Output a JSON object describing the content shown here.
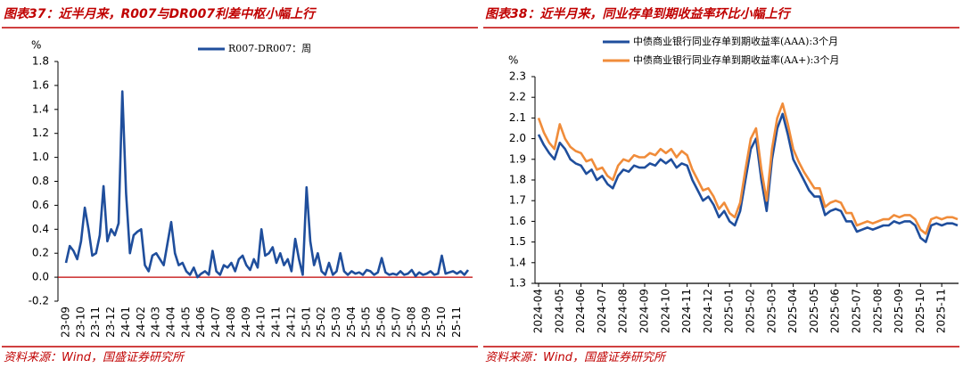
{
  "chart_data": [
    {
      "type": "line",
      "title": "图表37：近半月来，R007与DR007利差中枢小幅上行",
      "source": "资料来源：Wind，国盛证券研究所",
      "ylabel": "%",
      "categories": [
        "23-09",
        null,
        null,
        null,
        "23-10",
        null,
        null,
        null,
        "23-11",
        null,
        null,
        null,
        "23-12",
        null,
        null,
        null,
        "24-01",
        null,
        null,
        null,
        "24-02",
        null,
        null,
        null,
        "24-03",
        null,
        null,
        null,
        "24-04",
        null,
        null,
        null,
        "24-05",
        null,
        null,
        null,
        "24-06",
        null,
        null,
        null,
        "24-07",
        null,
        null,
        null,
        "24-08",
        null,
        null,
        null,
        "24-09",
        null,
        null,
        null,
        "24-10",
        null,
        null,
        null,
        "24-11",
        null,
        null,
        null,
        "24-12",
        null,
        null,
        null,
        "25-01",
        null,
        null,
        null,
        "25-02",
        null,
        null,
        null,
        "25-03",
        null,
        null,
        null,
        "25-04",
        null,
        null,
        null,
        "25-05",
        null,
        null,
        null,
        "25-06",
        null,
        null,
        null,
        "25-07",
        null,
        null,
        null,
        "25-08",
        null,
        null,
        null,
        "25-09",
        null,
        null,
        null,
        "25-10",
        null,
        null,
        null,
        "25-11",
        null,
        null,
        null
      ],
      "series": [
        {
          "name": "R007-DR007：周",
          "color": "#1f4e9c",
          "values": [
            0.12,
            0.26,
            0.22,
            0.15,
            0.3,
            0.58,
            0.4,
            0.18,
            0.2,
            0.35,
            0.76,
            0.3,
            0.4,
            0.35,
            0.45,
            1.55,
            0.7,
            0.2,
            0.35,
            0.38,
            0.4,
            0.1,
            0.05,
            0.18,
            0.2,
            0.15,
            0.1,
            0.28,
            0.46,
            0.2,
            0.1,
            0.12,
            0.05,
            0.02,
            0.08,
            0.0,
            0.03,
            0.05,
            0.02,
            0.22,
            0.05,
            0.02,
            0.1,
            0.08,
            0.12,
            0.05,
            0.15,
            0.18,
            0.1,
            0.06,
            0.15,
            0.08,
            0.4,
            0.18,
            0.2,
            0.25,
            0.12,
            0.2,
            0.1,
            0.15,
            0.05,
            0.32,
            0.15,
            0.02,
            0.75,
            0.3,
            0.1,
            0.2,
            0.05,
            0.02,
            0.12,
            0.02,
            0.05,
            0.2,
            0.05,
            0.02,
            0.05,
            0.03,
            0.04,
            0.02,
            0.06,
            0.05,
            0.02,
            0.04,
            0.16,
            0.04,
            0.02,
            0.03,
            0.02,
            0.05,
            0.02,
            0.03,
            0.06,
            0.01,
            0.04,
            0.02,
            0.03,
            0.05,
            0.02,
            0.03,
            0.18,
            0.03,
            0.04,
            0.05,
            0.03,
            0.05,
            0.02,
            0.06
          ]
        }
      ],
      "ylim": [
        -0.2,
        1.8
      ],
      "yticks": [
        -0.2,
        {
          "value": 0,
          "label": "0.0"
        },
        0.2,
        0.4,
        0.6,
        0.8,
        {
          "value": 1,
          "label": "1.0"
        },
        1.2,
        1.4,
        1.6,
        1.8
      ],
      "zero_line_color": "#c00000",
      "grid": false
    },
    {
      "type": "line",
      "title": "图表38：近半月来，同业存单到期收益率环比小幅上行",
      "source": "资料来源：Wind，国盛证券研究所",
      "ylabel": "%",
      "categories": [
        "2024-04",
        null,
        null,
        null,
        "2024-05",
        null,
        null,
        null,
        "2024-06",
        null,
        null,
        null,
        "2024-07",
        null,
        null,
        null,
        "2024-08",
        null,
        null,
        null,
        "2024-09",
        null,
        null,
        null,
        "2024-10",
        null,
        null,
        null,
        "2024-11",
        null,
        null,
        null,
        "2024-12",
        null,
        null,
        null,
        "2025-01",
        null,
        null,
        null,
        "2025-02",
        null,
        null,
        null,
        "2025-03",
        null,
        null,
        null,
        "2025-04",
        null,
        null,
        null,
        "2025-05",
        null,
        null,
        null,
        "2025-06",
        null,
        null,
        null,
        "2025-07",
        null,
        null,
        null,
        "2025-08",
        null,
        null,
        null,
        "2025-09",
        null,
        null,
        null,
        "2025-10",
        null,
        null,
        null,
        "2025-11",
        null,
        null,
        null
      ],
      "series": [
        {
          "name": "中债商业银行同业存单到期收益率(AAA):3个月",
          "color": "#1f4e9c",
          "values": [
            2.02,
            1.97,
            1.93,
            1.9,
            1.98,
            1.95,
            1.9,
            1.88,
            1.87,
            1.83,
            1.85,
            1.8,
            1.82,
            1.78,
            1.76,
            1.82,
            1.85,
            1.84,
            1.87,
            1.86,
            1.86,
            1.88,
            1.87,
            1.9,
            1.88,
            1.9,
            1.86,
            1.88,
            1.87,
            1.8,
            1.75,
            1.7,
            1.72,
            1.68,
            1.62,
            1.65,
            1.6,
            1.58,
            1.65,
            1.8,
            1.95,
            2.0,
            1.8,
            1.65,
            1.9,
            2.05,
            2.12,
            2.02,
            1.9,
            1.85,
            1.8,
            1.75,
            1.72,
            1.72,
            1.63,
            1.65,
            1.66,
            1.65,
            1.6,
            1.6,
            1.55,
            1.56,
            1.57,
            1.56,
            1.57,
            1.58,
            1.58,
            1.6,
            1.59,
            1.6,
            1.6,
            1.58,
            1.52,
            1.5,
            1.58,
            1.59,
            1.58,
            1.59,
            1.59,
            1.58
          ]
        },
        {
          "name": "中债商业银行同业存单到期收益率(AA+):3个月",
          "color": "#f08c3a",
          "values": [
            2.1,
            2.03,
            1.98,
            1.95,
            2.07,
            2.0,
            1.96,
            1.94,
            1.93,
            1.89,
            1.9,
            1.85,
            1.86,
            1.82,
            1.8,
            1.87,
            1.9,
            1.89,
            1.92,
            1.91,
            1.91,
            1.93,
            1.92,
            1.95,
            1.93,
            1.95,
            1.91,
            1.94,
            1.92,
            1.85,
            1.8,
            1.75,
            1.76,
            1.72,
            1.66,
            1.69,
            1.64,
            1.62,
            1.69,
            1.85,
            2.0,
            2.05,
            1.85,
            1.7,
            1.95,
            2.1,
            2.17,
            2.07,
            1.95,
            1.89,
            1.84,
            1.8,
            1.76,
            1.76,
            1.67,
            1.69,
            1.7,
            1.69,
            1.64,
            1.64,
            1.58,
            1.59,
            1.6,
            1.59,
            1.6,
            1.61,
            1.61,
            1.63,
            1.62,
            1.63,
            1.63,
            1.61,
            1.56,
            1.54,
            1.61,
            1.62,
            1.61,
            1.62,
            1.62,
            1.61
          ]
        }
      ],
      "ylim": [
        1.3,
        2.3
      ],
      "yticks": [
        1.3,
        1.4,
        1.5,
        1.6,
        1.7,
        1.8,
        1.9,
        {
          "value": 2,
          "label": "2.0"
        },
        2.1,
        2.2,
        2.3
      ],
      "grid": false
    }
  ]
}
